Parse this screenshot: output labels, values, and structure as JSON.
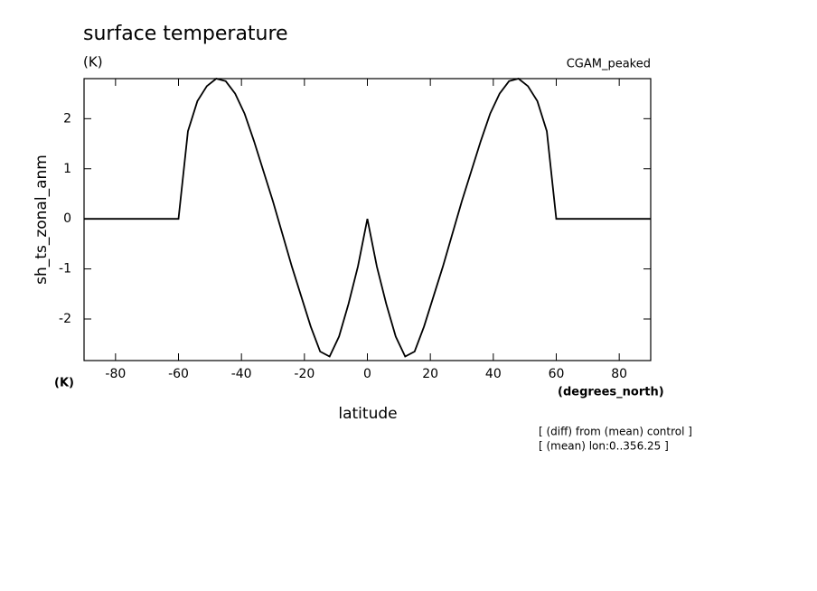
{
  "chart_data": {
    "type": "line",
    "title": "surface temperature",
    "units_label": "(K)",
    "dataset_label": "CGAM_peaked",
    "y_label": "sh_ts_zonal_anm",
    "y_units": "(K)",
    "x_label": "latitude",
    "x_units": "(degrees_north)",
    "notes": [
      "[ (diff) from (mean) control ]",
      "[ (mean) lon:0..356.25 ]"
    ],
    "x": [
      -90,
      -60,
      -57,
      -54,
      -51,
      -48,
      -45,
      -42,
      -39,
      -36,
      -33,
      -30,
      -27,
      -24,
      -21,
      -18,
      -15,
      -12,
      -9,
      -6,
      -3,
      0,
      3,
      6,
      9,
      12,
      15,
      18,
      21,
      24,
      27,
      30,
      33,
      36,
      39,
      42,
      45,
      48,
      51,
      54,
      57,
      60,
      90
    ],
    "series": [
      {
        "color": "#000000",
        "values": [
          0,
          0,
          1.75,
          2.35,
          2.65,
          2.8,
          2.75,
          2.5,
          2.1,
          1.55,
          0.95,
          0.35,
          -0.3,
          -0.95,
          -1.55,
          -2.15,
          -2.65,
          -2.75,
          -2.35,
          -1.7,
          -0.95,
          0,
          -0.95,
          -1.7,
          -2.35,
          -2.75,
          -2.65,
          -2.15,
          -1.55,
          -0.95,
          -0.3,
          0.35,
          0.95,
          1.55,
          2.1,
          2.5,
          2.75,
          2.8,
          2.65,
          2.35,
          1.75,
          0,
          0
        ]
      }
    ],
    "xlim": [
      -90,
      90
    ],
    "xticks": [
      -80,
      -60,
      -40,
      -20,
      0,
      20,
      40,
      60,
      80
    ],
    "ylim": [
      -2.83,
      2.8
    ],
    "yticks": [
      -2,
      -1,
      0,
      1,
      2
    ]
  }
}
